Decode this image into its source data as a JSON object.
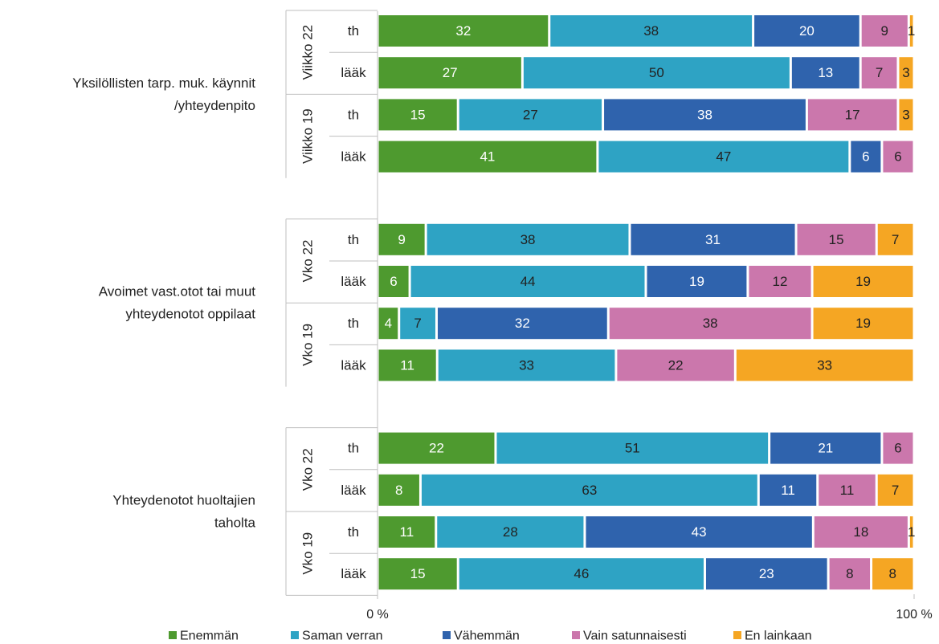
{
  "chart_data": {
    "type": "bar",
    "orientation": "horizontal",
    "stacked": "percent",
    "groups": [
      {
        "label": "Yksilöllisten tarp. muk. käynnit\n/yhteydenpito",
        "periods": [
          {
            "label": "Viikko 22",
            "rows": [
              {
                "label": "th",
                "values": [
                  32,
                  38,
                  20,
                  9,
                  1
                ]
              },
              {
                "label": "lääk",
                "values": [
                  27,
                  50,
                  13,
                  7,
                  3
                ]
              }
            ]
          },
          {
            "label": "Viikko 19",
            "rows": [
              {
                "label": "th",
                "values": [
                  15,
                  27,
                  38,
                  17,
                  3
                ]
              },
              {
                "label": "lääk",
                "values": [
                  41,
                  47,
                  6,
                  6,
                  0
                ]
              }
            ]
          }
        ]
      },
      {
        "label": "Avoimet vast.otot tai muut\nyhteydenotot oppilaat",
        "periods": [
          {
            "label": "Vko 22",
            "rows": [
              {
                "label": "th",
                "values": [
                  9,
                  38,
                  31,
                  15,
                  7
                ]
              },
              {
                "label": "lääk",
                "values": [
                  6,
                  44,
                  19,
                  12,
                  19
                ]
              }
            ]
          },
          {
            "label": "Vko 19",
            "rows": [
              {
                "label": "th",
                "values": [
                  4,
                  7,
                  32,
                  38,
                  19
                ]
              },
              {
                "label": "lääk",
                "values": [
                  11,
                  33,
                  0,
                  22,
                  33
                ]
              }
            ]
          }
        ]
      },
      {
        "label": "Yhteydenotot huoltajien\ntaholta",
        "periods": [
          {
            "label": "Vko 22",
            "rows": [
              {
                "label": "th",
                "values": [
                  22,
                  51,
                  21,
                  6,
                  0
                ]
              },
              {
                "label": "lääk",
                "values": [
                  8,
                  63,
                  11,
                  11,
                  7
                ]
              }
            ]
          },
          {
            "label": "Vko 19",
            "rows": [
              {
                "label": "th",
                "values": [
                  11,
                  28,
                  43,
                  18,
                  1
                ]
              },
              {
                "label": "lääk",
                "values": [
                  15,
                  46,
                  23,
                  8,
                  8
                ]
              }
            ]
          }
        ]
      }
    ],
    "series": [
      {
        "name": "Enemmän",
        "color": "#4e9a2f"
      },
      {
        "name": "Saman verran",
        "color": "#2ea3c4"
      },
      {
        "name": "Vähemmän",
        "color": "#2f63ad"
      },
      {
        "name": "Vain satunnaisesti",
        "color": "#cb77ac"
      },
      {
        "name": "En lainkaan",
        "color": "#f5a623"
      }
    ],
    "xaxis": {
      "ticks": [
        "0 %",
        "100 %"
      ],
      "range": [
        0,
        100
      ]
    },
    "legend": "bottom"
  }
}
